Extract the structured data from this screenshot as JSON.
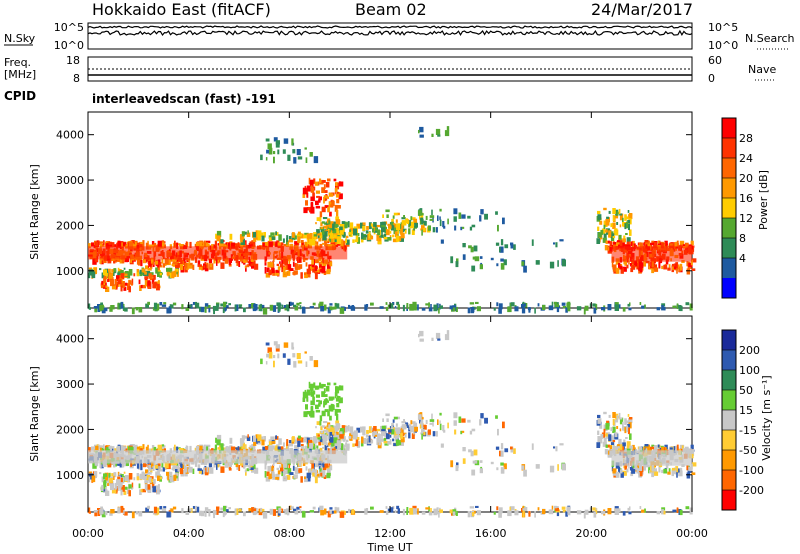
{
  "header": {
    "title": "Hokkaido East (fitACF)",
    "beam": "Beam 02",
    "date": "24/Mar/2017"
  },
  "panels": {
    "nsky": {
      "label": "N.Sky",
      "left_ticks": [
        "10^5",
        "10^0"
      ],
      "right_ticks": [
        "10^5",
        "10^0"
      ],
      "right_label": "N.Search"
    },
    "freq": {
      "label_top": "Freq.",
      "label_unit": "[MHz]",
      "left_ticks": [
        "18",
        "8"
      ],
      "right_ticks": [
        "60",
        "0"
      ],
      "right_label": "Nave"
    },
    "cpid": {
      "label": "CPID",
      "text": "interleavedscan (fast) -191"
    }
  },
  "chart_data": [
    {
      "type": "heatmap",
      "quantity": "power",
      "ylabel": "Slant Range [km]",
      "ylim": [
        180,
        4500
      ],
      "yticks": [
        1000,
        2000,
        3000,
        4000
      ],
      "xlabel": "Time UT",
      "xlim": [
        0,
        24
      ],
      "xticks": [
        "00:00",
        "04:00",
        "08:00",
        "12:00",
        "16:00",
        "20:00",
        "00:00"
      ],
      "colorbar": {
        "label": "Power [dB]",
        "ticks": [
          "28",
          "24",
          "20",
          "16",
          "12",
          "8",
          "4"
        ],
        "colors": [
          "#ff0000",
          "#ff3300",
          "#ff6600",
          "#ff9900",
          "#ffcc00",
          "#55a830",
          "#2e8b57",
          "#1e5aa0",
          "#0000ff"
        ]
      }
    },
    {
      "type": "heatmap",
      "quantity": "velocity",
      "ylabel": "Slant Range [km]",
      "ylim": [
        180,
        4500
      ],
      "yticks": [
        1000,
        2000,
        3000,
        4000
      ],
      "xlabel": "Time UT",
      "xlim": [
        0,
        24
      ],
      "xticks": [
        "00:00",
        "04:00",
        "08:00",
        "12:00",
        "16:00",
        "20:00",
        "00:00"
      ],
      "colorbar": {
        "label": "Velocity [m s⁻¹]",
        "ticks": [
          "200",
          "100",
          "50",
          "15",
          "-15",
          "-50",
          "-100",
          "-200"
        ],
        "colors": [
          "#1a2a9a",
          "#2e5ab0",
          "#2e8b57",
          "#66cc33",
          "#c8c8c8",
          "#ffcc33",
          "#ff9900",
          "#ff6600",
          "#ff0000"
        ]
      }
    }
  ]
}
